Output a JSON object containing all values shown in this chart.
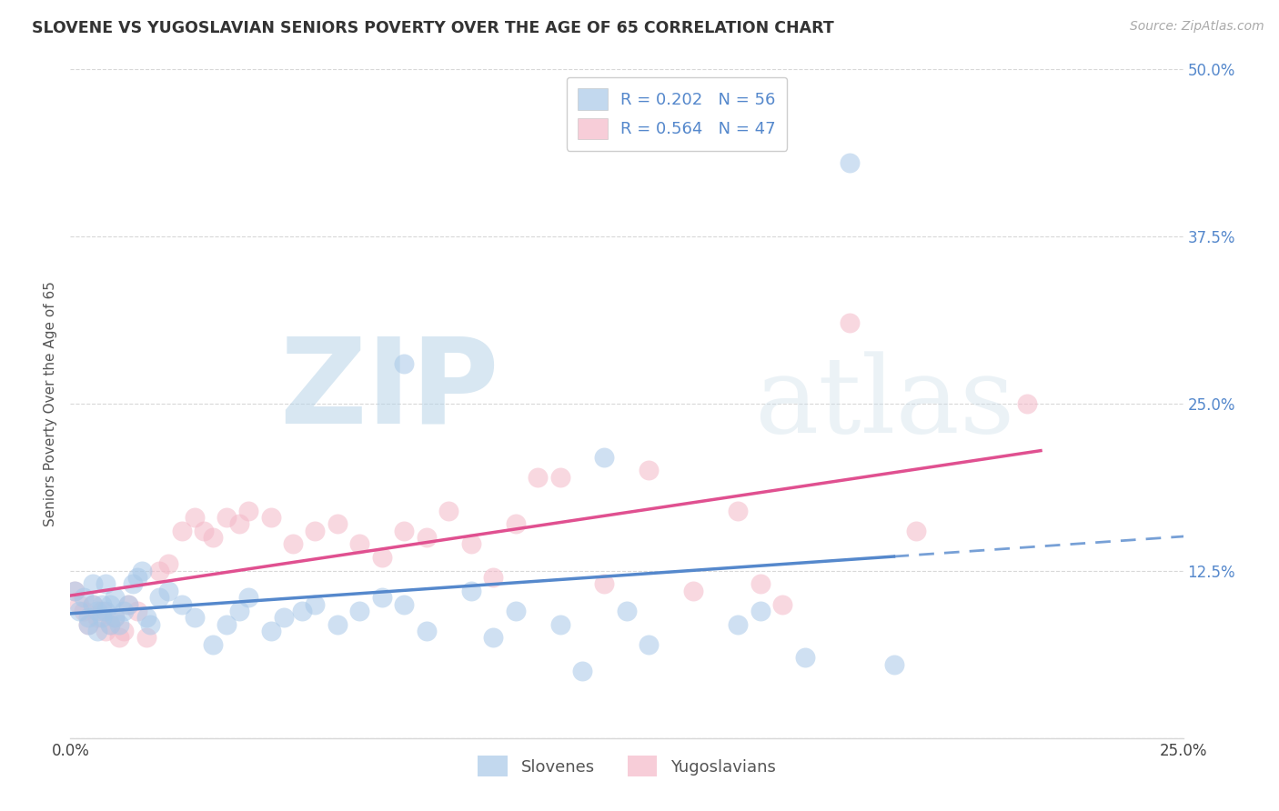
{
  "title": "SLOVENE VS YUGOSLAVIAN SENIORS POVERTY OVER THE AGE OF 65 CORRELATION CHART",
  "source": "Source: ZipAtlas.com",
  "ylabel": "Seniors Poverty Over the Age of 65",
  "xlim": [
    0.0,
    0.25
  ],
  "ylim": [
    0.0,
    0.5
  ],
  "ytick_vals": [
    0.0,
    0.125,
    0.25,
    0.375,
    0.5
  ],
  "ytick_labels": [
    "",
    "12.5%",
    "25.0%",
    "37.5%",
    "50.0%"
  ],
  "xtick_vals": [
    0.0,
    0.05,
    0.1,
    0.15,
    0.2,
    0.25
  ],
  "xtick_labels": [
    "0.0%",
    "",
    "",
    "",
    "",
    "25.0%"
  ],
  "background_color": "#ffffff",
  "slovene_color": "#a8c8e8",
  "yugoslav_color": "#f4b8c8",
  "slovene_R": 0.202,
  "slovene_N": 56,
  "yugoslav_R": 0.564,
  "yugoslav_N": 47,
  "legend_label_slovene": "Slovenes",
  "legend_label_yugoslav": "Yugoslavians",
  "slovene_line_color": "#5588cc",
  "yugoslav_line_color": "#e05090",
  "grid_color": "#d8d8d8",
  "slovene_x": [
    0.001,
    0.002,
    0.003,
    0.004,
    0.004,
    0.005,
    0.005,
    0.006,
    0.006,
    0.007,
    0.007,
    0.008,
    0.008,
    0.009,
    0.009,
    0.01,
    0.01,
    0.011,
    0.012,
    0.013,
    0.014,
    0.015,
    0.016,
    0.017,
    0.018,
    0.02,
    0.022,
    0.025,
    0.028,
    0.032,
    0.035,
    0.038,
    0.04,
    0.045,
    0.048,
    0.052,
    0.055,
    0.06,
    0.065,
    0.07,
    0.075,
    0.08,
    0.09,
    0.095,
    0.1,
    0.11,
    0.115,
    0.125,
    0.13,
    0.15,
    0.155,
    0.165,
    0.175,
    0.185,
    0.075,
    0.12
  ],
  "slovene_y": [
    0.11,
    0.095,
    0.105,
    0.09,
    0.085,
    0.1,
    0.115,
    0.095,
    0.08,
    0.1,
    0.09,
    0.095,
    0.115,
    0.085,
    0.1,
    0.09,
    0.105,
    0.085,
    0.095,
    0.1,
    0.115,
    0.12,
    0.125,
    0.09,
    0.085,
    0.105,
    0.11,
    0.1,
    0.09,
    0.07,
    0.085,
    0.095,
    0.105,
    0.08,
    0.09,
    0.095,
    0.1,
    0.085,
    0.095,
    0.105,
    0.1,
    0.08,
    0.11,
    0.075,
    0.095,
    0.085,
    0.05,
    0.095,
    0.07,
    0.085,
    0.095,
    0.06,
    0.43,
    0.055,
    0.28,
    0.21
  ],
  "yugoslav_x": [
    0.001,
    0.002,
    0.003,
    0.004,
    0.005,
    0.006,
    0.007,
    0.008,
    0.009,
    0.01,
    0.011,
    0.012,
    0.013,
    0.015,
    0.017,
    0.02,
    0.022,
    0.025,
    0.028,
    0.03,
    0.032,
    0.035,
    0.038,
    0.04,
    0.045,
    0.05,
    0.055,
    0.06,
    0.065,
    0.07,
    0.075,
    0.08,
    0.085,
    0.09,
    0.095,
    0.1,
    0.105,
    0.11,
    0.12,
    0.13,
    0.14,
    0.15,
    0.155,
    0.16,
    0.175,
    0.19,
    0.215
  ],
  "yugoslav_y": [
    0.11,
    0.1,
    0.095,
    0.085,
    0.1,
    0.09,
    0.095,
    0.08,
    0.085,
    0.09,
    0.075,
    0.08,
    0.1,
    0.095,
    0.075,
    0.125,
    0.13,
    0.155,
    0.165,
    0.155,
    0.15,
    0.165,
    0.16,
    0.17,
    0.165,
    0.145,
    0.155,
    0.16,
    0.145,
    0.135,
    0.155,
    0.15,
    0.17,
    0.145,
    0.12,
    0.16,
    0.195,
    0.195,
    0.115,
    0.2,
    0.11,
    0.17,
    0.115,
    0.1,
    0.31,
    0.155,
    0.25
  ]
}
